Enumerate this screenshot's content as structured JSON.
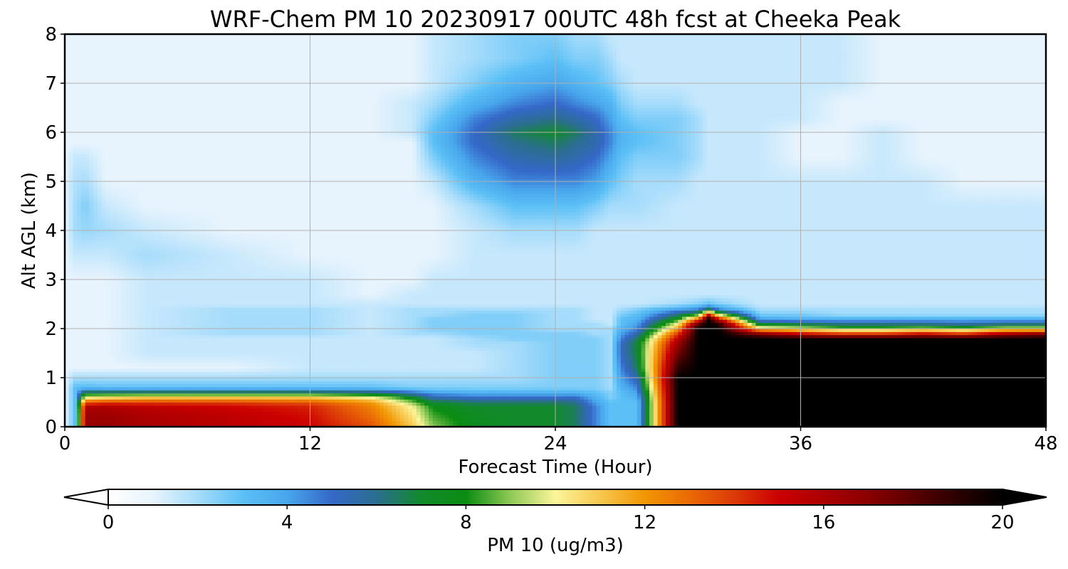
{
  "chart_data": {
    "type": "heatmap",
    "title": "WRF-Chem PM 10  20230917 00UTC 48h fcst at Cheeka Peak",
    "xlabel": "Forecast Time (Hour)",
    "ylabel": "Alt AGL (km)",
    "xlim": [
      0,
      48
    ],
    "ylim": [
      0,
      8
    ],
    "xticks": [
      0,
      12,
      24,
      36,
      48
    ],
    "yticks": [
      0,
      1,
      2,
      3,
      4,
      5,
      6,
      7,
      8
    ],
    "grid": true,
    "colorbar": {
      "label": "PM 10  (ug/m3)",
      "range": [
        0,
        20
      ],
      "ticks": [
        0,
        4,
        8,
        12,
        16,
        20
      ],
      "extend": "both",
      "colors": [
        {
          "v": 0,
          "c": "#ffffff"
        },
        {
          "v": 1,
          "c": "#e8f4fd"
        },
        {
          "v": 2,
          "c": "#a6dcfb"
        },
        {
          "v": 3,
          "c": "#5cc0f6"
        },
        {
          "v": 4,
          "c": "#48a6ec"
        },
        {
          "v": 5,
          "c": "#3568c9"
        },
        {
          "v": 6,
          "c": "#2b6e90"
        },
        {
          "v": 7,
          "c": "#128a2c"
        },
        {
          "v": 8,
          "c": "#0b8c12"
        },
        {
          "v": 9,
          "c": "#8fc956"
        },
        {
          "v": 10,
          "c": "#fcf59a"
        },
        {
          "v": 11,
          "c": "#f7c74e"
        },
        {
          "v": 12,
          "c": "#f29602"
        },
        {
          "v": 13,
          "c": "#ea6a05"
        },
        {
          "v": 14,
          "c": "#dc3a08"
        },
        {
          "v": 15,
          "c": "#cc0000"
        },
        {
          "v": 17,
          "c": "#8a0000"
        },
        {
          "v": 19,
          "c": "#2a0000"
        },
        {
          "v": 20,
          "c": "#000000"
        }
      ]
    },
    "hour_columns": [
      0,
      0.5,
      1,
      2,
      4,
      8,
      12,
      15,
      17,
      18,
      20,
      22,
      24,
      25,
      26,
      26.7,
      27.2,
      28,
      30,
      31,
      31.5,
      32,
      34,
      36,
      38,
      40,
      42,
      44,
      46,
      48
    ],
    "altitude_levels_km": [
      0,
      0.2,
      0.4,
      0.5,
      0.6,
      0.7,
      0.8,
      1.0,
      1.2,
      1.5,
      1.7,
      1.8,
      1.9,
      2.0,
      2.1,
      2.2,
      2.3,
      2.4,
      2.5,
      2.7,
      3.0,
      3.5,
      4.0,
      4.5,
      5.0,
      5.5,
      5.8,
      6.0,
      6.3,
      6.6,
      7.0,
      7.5,
      8.0
    ],
    "pm10_ug_m3": [
      [
        1.0,
        1.0,
        1.0,
        1.0,
        1.0,
        1.0,
        1.0,
        1.0,
        1.0,
        1.0,
        1.0,
        1.0,
        1.0,
        1.0,
        1.0,
        1.0,
        1.0,
        1.0,
        1.0,
        1.0,
        1.0,
        1.0,
        1.0,
        1.0,
        1.0,
        1.0,
        1.0,
        1.0,
        1.0,
        1.0,
        1.0,
        1.0,
        1.0
      ],
      [
        3.0,
        3.0,
        3.0,
        3.0,
        3.0,
        3.0,
        3.0,
        2.0,
        1.0,
        1.0,
        1.0,
        1.0,
        1.0,
        1.0,
        1.0,
        1.0,
        1.0,
        1.0,
        1.0,
        1.0,
        1.0,
        1.5,
        2.0,
        2.0,
        1.8,
        1.5,
        1.0,
        1.0,
        1.0,
        1.0,
        1.0,
        1.0,
        1.0
      ],
      [
        16.5,
        16.5,
        16.0,
        13.5,
        10.0,
        7.0,
        3.2,
        2.0,
        1.0,
        1.0,
        1.0,
        1.0,
        1.0,
        1.0,
        1.0,
        1.0,
        1.0,
        1.0,
        1.0,
        1.0,
        1.0,
        1.5,
        2.2,
        2.5,
        2.0,
        1.5,
        1.0,
        1.0,
        1.0,
        1.0,
        1.0,
        1.0,
        1.0
      ],
      [
        16.5,
        16.5,
        16.0,
        14.0,
        10.5,
        7.0,
        3.0,
        2.0,
        1.0,
        1.0,
        1.0,
        1.0,
        1.0,
        1.0,
        1.0,
        1.0,
        1.0,
        1.0,
        1.0,
        1.0,
        1.0,
        1.5,
        2.0,
        1.5,
        1.0,
        1.0,
        1.0,
        1.0,
        1.0,
        1.0,
        1.0,
        1.0,
        1.0
      ],
      [
        16.0,
        16.0,
        15.5,
        14.0,
        11.0,
        7.0,
        3.0,
        2.0,
        1.0,
        1.5,
        1.5,
        1.5,
        1.5,
        1.5,
        1.5,
        1.5,
        1.5,
        1.5,
        1.5,
        1.5,
        1.5,
        2.0,
        1.5,
        1.0,
        1.0,
        1.0,
        1.0,
        1.0,
        1.0,
        1.0,
        1.0,
        1.0,
        1.0
      ],
      [
        15.5,
        15.5,
        15.0,
        14.0,
        11.0,
        7.0,
        3.0,
        2.0,
        1.0,
        1.5,
        1.5,
        1.5,
        2.0,
        2.0,
        2.0,
        2.0,
        2.0,
        2.0,
        1.5,
        1.5,
        1.5,
        1.5,
        1.0,
        1.0,
        1.0,
        1.0,
        1.0,
        1.0,
        1.0,
        1.0,
        1.0,
        1.0,
        1.0
      ],
      [
        15.0,
        14.8,
        14.5,
        13.5,
        11.0,
        7.0,
        3.0,
        2.0,
        1.5,
        1.5,
        1.5,
        1.5,
        2.0,
        2.0,
        2.0,
        2.0,
        2.0,
        2.0,
        1.5,
        1.5,
        1.5,
        1.0,
        1.0,
        1.0,
        1.0,
        1.0,
        1.0,
        1.0,
        1.0,
        1.0,
        1.0,
        1.0,
        1.0
      ],
      [
        13.5,
        13.0,
        12.5,
        12.0,
        10.0,
        6.5,
        3.0,
        2.0,
        1.5,
        1.5,
        1.5,
        1.5,
        1.5,
        1.5,
        1.5,
        1.5,
        1.5,
        1.5,
        1.5,
        1.0,
        1.0,
        1.0,
        1.0,
        1.0,
        1.0,
        1.0,
        1.0,
        1.0,
        1.0,
        1.0,
        1.0,
        1.0,
        1.0
      ],
      [
        11.0,
        10.5,
        10.0,
        9.0,
        7.5,
        5.0,
        2.5,
        2.0,
        1.5,
        1.5,
        1.5,
        1.5,
        2.0,
        2.0,
        2.0,
        2.0,
        2.0,
        2.0,
        1.5,
        1.5,
        1.0,
        1.0,
        1.0,
        1.0,
        1.0,
        1.0,
        1.0,
        1.5,
        1.5,
        1.5,
        1.0,
        1.0,
        1.0
      ],
      [
        9.0,
        8.5,
        8.0,
        7.0,
        5.5,
        4.0,
        2.5,
        2.0,
        1.5,
        1.5,
        1.5,
        1.5,
        2.0,
        2.5,
        2.5,
        2.5,
        2.0,
        2.0,
        1.5,
        1.5,
        1.5,
        1.0,
        1.0,
        1.0,
        1.5,
        2.5,
        3.0,
        3.0,
        2.5,
        2.0,
        1.5,
        1.5,
        1.5
      ],
      [
        7.5,
        7.5,
        7.0,
        6.5,
        5.0,
        3.5,
        2.5,
        2.0,
        1.5,
        1.5,
        2.0,
        2.0,
        2.5,
        2.5,
        2.5,
        2.5,
        2.5,
        2.0,
        1.5,
        1.5,
        1.5,
        1.5,
        1.5,
        2.0,
        3.5,
        4.5,
        5.0,
        5.0,
        4.5,
        3.5,
        2.5,
        2.0,
        2.0
      ],
      [
        7.0,
        7.0,
        7.0,
        6.5,
        5.0,
        3.5,
        2.5,
        2.0,
        2.0,
        2.0,
        2.0,
        2.5,
        2.5,
        2.5,
        2.5,
        2.5,
        2.5,
        2.0,
        1.5,
        1.5,
        1.5,
        1.5,
        2.0,
        3.0,
        4.5,
        5.5,
        6.0,
        6.5,
        5.5,
        4.5,
        3.5,
        2.5,
        2.5
      ],
      [
        7.0,
        7.0,
        7.0,
        6.5,
        5.0,
        3.5,
        2.5,
        2.5,
        2.5,
        2.5,
        2.5,
        2.5,
        2.5,
        2.0,
        2.0,
        2.0,
        2.0,
        2.0,
        1.5,
        1.5,
        1.5,
        1.5,
        2.0,
        3.0,
        4.5,
        5.8,
        6.5,
        7.0,
        6.0,
        5.0,
        4.0,
        3.0,
        2.5
      ],
      [
        6.5,
        6.5,
        6.5,
        6.0,
        5.0,
        3.5,
        2.5,
        2.5,
        2.5,
        2.5,
        2.5,
        2.5,
        2.5,
        2.0,
        2.0,
        2.0,
        2.0,
        2.0,
        1.5,
        1.5,
        1.5,
        1.5,
        2.0,
        3.0,
        4.5,
        5.5,
        6.0,
        6.5,
        5.5,
        4.5,
        3.5,
        2.5,
        2.0
      ],
      [
        4.5,
        4.5,
        4.5,
        4.0,
        3.5,
        3.0,
        2.5,
        2.5,
        2.5,
        2.5,
        2.5,
        2.5,
        2.0,
        2.0,
        2.0,
        1.5,
        1.5,
        1.5,
        1.5,
        1.5,
        1.5,
        1.5,
        1.5,
        2.5,
        4.0,
        5.0,
        5.5,
        5.5,
        5.0,
        4.0,
        3.0,
        2.5,
        2.0
      ],
      [
        3.0,
        3.0,
        3.0,
        3.0,
        2.5,
        2.5,
        2.0,
        2.0,
        2.0,
        2.0,
        2.0,
        2.0,
        2.0,
        2.0,
        1.5,
        1.5,
        1.5,
        1.5,
        1.5,
        1.5,
        1.5,
        1.5,
        1.5,
        2.0,
        3.0,
        4.0,
        4.5,
        4.5,
        4.0,
        3.5,
        2.5,
        2.0,
        1.5
      ],
      [
        3.0,
        3.0,
        3.0,
        3.0,
        3.0,
        3.0,
        3.5,
        4.0,
        4.5,
        5.0,
        5.0,
        4.5,
        4.0,
        3.5,
        3.0,
        3.0,
        2.5,
        2.0,
        1.5,
        1.5,
        1.5,
        1.5,
        1.5,
        2.0,
        2.5,
        3.0,
        3.5,
        3.5,
        3.0,
        2.5,
        2.0,
        1.5,
        1.5
      ],
      [
        3.0,
        3.0,
        3.0,
        3.0,
        3.5,
        4.0,
        4.5,
        5.5,
        6.5,
        7.0,
        7.0,
        6.5,
        5.5,
        4.5,
        4.0,
        3.5,
        3.0,
        2.5,
        1.5,
        1.5,
        1.5,
        1.5,
        1.5,
        2.0,
        2.0,
        2.5,
        3.0,
        3.0,
        2.5,
        2.0,
        1.5,
        1.5,
        1.5
      ],
      [
        20.0,
        20.0,
        20.0,
        20.0,
        20.0,
        20.0,
        20.0,
        20.0,
        19.0,
        17.5,
        16.5,
        15.5,
        14.0,
        12.0,
        10.0,
        8.0,
        6.0,
        4.0,
        2.0,
        1.5,
        1.5,
        1.5,
        1.5,
        1.5,
        2.0,
        2.5,
        2.5,
        2.5,
        2.5,
        2.0,
        1.5,
        1.5,
        1.5
      ],
      [
        20.0,
        20.0,
        20.0,
        20.0,
        20.0,
        20.0,
        20.0,
        20.0,
        20.0,
        20.0,
        20.0,
        20.0,
        20.0,
        20.0,
        18.0,
        13.0,
        8.0,
        4.5,
        2.5,
        1.5,
        1.5,
        1.5,
        1.5,
        1.5,
        1.5,
        2.0,
        2.0,
        2.0,
        2.0,
        1.5,
        1.5,
        1.5,
        1.5
      ],
      [
        20.0,
        20.0,
        20.0,
        20.0,
        20.0,
        20.0,
        20.0,
        20.0,
        20.0,
        20.0,
        20.0,
        20.0,
        20.0,
        20.0,
        20.0,
        20.0,
        14.0,
        7.0,
        3.0,
        1.5,
        1.5,
        1.5,
        1.5,
        1.5,
        1.5,
        1.5,
        1.5,
        1.5,
        1.5,
        1.5,
        1.5,
        1.5,
        1.5
      ],
      [
        20.0,
        20.0,
        20.0,
        20.0,
        20.0,
        20.0,
        20.0,
        20.0,
        20.0,
        20.0,
        20.0,
        20.0,
        20.0,
        20.0,
        19.0,
        15.0,
        9.0,
        4.5,
        2.5,
        1.5,
        1.5,
        1.5,
        1.5,
        1.5,
        1.5,
        1.5,
        1.5,
        1.5,
        1.5,
        1.5,
        1.5,
        1.5,
        1.5
      ],
      [
        20.0,
        20.0,
        20.0,
        20.0,
        20.0,
        20.0,
        20.0,
        20.0,
        20.0,
        20.0,
        20.0,
        20.0,
        17.0,
        11.0,
        7.0,
        4.0,
        2.5,
        2.0,
        1.5,
        1.5,
        1.5,
        1.5,
        1.5,
        1.5,
        1.5,
        1.5,
        1.5,
        1.5,
        1.5,
        1.5,
        1.5,
        1.5,
        1.5
      ],
      [
        20.0,
        20.0,
        20.0,
        20.0,
        20.0,
        20.0,
        20.0,
        20.0,
        20.0,
        20.0,
        20.0,
        20.0,
        15.0,
        10.0,
        6.5,
        3.5,
        2.5,
        2.0,
        1.5,
        1.5,
        1.5,
        1.5,
        1.5,
        1.5,
        1.5,
        1.0,
        1.0,
        1.0,
        1.5,
        1.5,
        1.5,
        1.5,
        1.5
      ],
      [
        20.0,
        20.0,
        20.0,
        20.0,
        20.0,
        20.0,
        20.0,
        20.0,
        20.0,
        20.0,
        20.0,
        20.0,
        14.0,
        9.0,
        6.0,
        3.5,
        2.0,
        2.0,
        1.5,
        1.5,
        1.5,
        1.5,
        1.5,
        1.5,
        1.5,
        1.0,
        1.0,
        1.0,
        1.0,
        1.0,
        1.5,
        1.5,
        1.5
      ],
      [
        20.0,
        20.0,
        20.0,
        20.0,
        20.0,
        20.0,
        20.0,
        20.0,
        20.0,
        20.0,
        20.0,
        20.0,
        14.0,
        9.0,
        6.0,
        3.5,
        2.0,
        2.0,
        1.5,
        1.5,
        1.5,
        1.5,
        1.5,
        1.5,
        1.5,
        1.5,
        1.5,
        1.5,
        1.0,
        1.0,
        1.0,
        1.0,
        1.0
      ],
      [
        20.0,
        20.0,
        20.0,
        20.0,
        20.0,
        20.0,
        20.0,
        20.0,
        20.0,
        20.0,
        20.0,
        20.0,
        15.0,
        9.5,
        6.0,
        3.5,
        2.0,
        2.0,
        1.5,
        1.5,
        1.5,
        1.5,
        1.5,
        1.5,
        1.5,
        1.0,
        1.0,
        1.0,
        1.0,
        1.0,
        1.0,
        1.0,
        1.0
      ],
      [
        20.0,
        20.0,
        20.0,
        20.0,
        20.0,
        20.0,
        20.0,
        20.0,
        20.0,
        20.0,
        20.0,
        20.0,
        14.0,
        9.0,
        5.5,
        3.5,
        2.0,
        2.0,
        1.5,
        1.5,
        1.5,
        1.5,
        1.5,
        1.5,
        1.0,
        1.0,
        1.0,
        1.0,
        1.0,
        1.0,
        1.0,
        1.0,
        1.0
      ],
      [
        20.0,
        20.0,
        20.0,
        20.0,
        20.0,
        20.0,
        20.0,
        20.0,
        20.0,
        20.0,
        20.0,
        20.0,
        16.0,
        10.0,
        6.0,
        3.5,
        2.0,
        2.0,
        1.5,
        1.5,
        1.5,
        1.5,
        1.5,
        1.5,
        1.0,
        1.0,
        1.0,
        1.0,
        1.0,
        1.0,
        1.0,
        1.0,
        1.0
      ],
      [
        20.0,
        20.0,
        20.0,
        20.0,
        20.0,
        20.0,
        20.0,
        20.0,
        20.0,
        20.0,
        20.0,
        20.0,
        17.0,
        10.0,
        6.0,
        3.5,
        2.0,
        2.0,
        1.5,
        1.5,
        1.5,
        1.5,
        1.5,
        1.5,
        1.0,
        1.0,
        1.0,
        1.0,
        1.0,
        1.0,
        1.0,
        1.0,
        1.0
      ]
    ]
  }
}
